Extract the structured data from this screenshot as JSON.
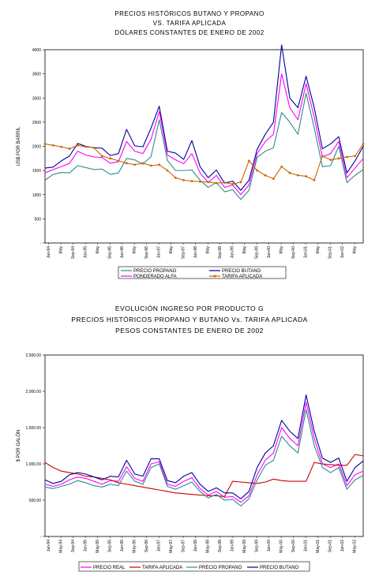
{
  "chart_data": [
    {
      "type": "line",
      "title_lines": [
        "PRECIOS HISTÓRICOS BUTANO Y PROPANO",
        "VS. TARIFA APLICADA",
        "DÓLARES CONSTANTES DE ENERO DE 2002"
      ],
      "ylabel": "US$ POR BARRIL",
      "ylim": [
        0,
        4000
      ],
      "ytick_labels": [
        "-",
        "500",
        "1000",
        "1500",
        "2000",
        "2500",
        "3000",
        "3500",
        "4000"
      ],
      "ytick_values": [
        0,
        500,
        1000,
        1500,
        2000,
        2500,
        3000,
        3500,
        4000
      ],
      "x_labels": [
        "Jan-94",
        "May",
        "Sep-94",
        "Jan-95",
        "May",
        "Sep-95",
        "Jan-96",
        "May",
        "Sep-96",
        "Jan-97",
        "May",
        "Sep-97",
        "Jan-98",
        "May",
        "Sep-98",
        "Jan-99",
        "May",
        "Sep-99",
        "Jan-00",
        "May",
        "Sep-00",
        "Jan-01",
        "May",
        "Sep-01",
        "Jan-02",
        "May"
      ],
      "legend": "bottom",
      "series": [
        {
          "name": "PRECIO PROPANO",
          "color": "#2e8b8b",
          "values": [
            1300,
            1420,
            1460,
            1450,
            1600,
            1560,
            1520,
            1530,
            1420,
            1450,
            1750,
            1720,
            1630,
            1790,
            2550,
            1710,
            1500,
            1500,
            1510,
            1300,
            1150,
            1250,
            1060,
            1100,
            900,
            1090,
            1770,
            1900,
            1970,
            2700,
            2500,
            2250,
            3100,
            2380,
            1580,
            1600,
            2000,
            1250,
            1400,
            1520
          ]
        },
        {
          "name": "PRECIO BUTANO",
          "color": "#000099",
          "values": [
            1550,
            1570,
            1700,
            1800,
            2060,
            2000,
            1970,
            1960,
            1810,
            1850,
            2350,
            2010,
            1990,
            2380,
            2830,
            1900,
            1860,
            1730,
            2120,
            1580,
            1350,
            1510,
            1240,
            1280,
            1090,
            1300,
            1940,
            2250,
            2500,
            4100,
            3000,
            2800,
            3450,
            2800,
            1950,
            2050,
            2200,
            1450,
            1700,
            2000
          ]
        },
        {
          "name": "PONDERADO ALFA",
          "color": "#ff00ff",
          "values": [
            1450,
            1520,
            1580,
            1650,
            1900,
            1820,
            1780,
            1770,
            1650,
            1680,
            2100,
            1900,
            1850,
            2150,
            2720,
            1820,
            1720,
            1640,
            1850,
            1450,
            1250,
            1400,
            1150,
            1200,
            1000,
            1200,
            1850,
            2100,
            2250,
            3500,
            2800,
            2550,
            3300,
            2600,
            1780,
            1850,
            2100,
            1350,
            1550,
            1750
          ]
        },
        {
          "name": "TARIFA APLICADA",
          "color": "#cc6600",
          "values": [
            2050,
            2020,
            1990,
            1950,
            2020,
            1990,
            1970,
            1800,
            1750,
            1700,
            1650,
            1620,
            1650,
            1600,
            1620,
            1500,
            1350,
            1300,
            1280,
            1270,
            1260,
            1240,
            1250,
            1220,
            1260,
            1700,
            1500,
            1400,
            1330,
            1580,
            1450,
            1400,
            1380,
            1300,
            1800,
            1720,
            1750,
            1780,
            1800,
            2050
          ]
        }
      ]
    },
    {
      "type": "line",
      "title_lines": [
        "EVOLUCIÓN INGRESO POR PRODUCTO G",
        "PRECIOS HISTÓRICOS PROPANO Y BUTANO Vs. TARIFA APLICADA",
        "PESOS CONSTANTES DE ENERO DE 2002"
      ],
      "ylabel": "$ POR GALÓN",
      "ylim": [
        0,
        2500
      ],
      "ytick_labels": [
        "-",
        "500.00",
        "1,000.00",
        "1,500.00",
        "2,000.00",
        "2,500.00"
      ],
      "ytick_values": [
        0,
        500,
        1000,
        1500,
        2000,
        2500
      ],
      "x_labels": [
        "Jan-94",
        "May-94",
        "Sep-94",
        "Jan-95",
        "May-95",
        "Sep-95",
        "Jan-96",
        "May-96",
        "Sep-96",
        "Jan-97",
        "May-97",
        "Sep-97",
        "Jan-98",
        "May-98",
        "Sep-98",
        "Jan-99",
        "May-99",
        "Sep-99",
        "Jan-00",
        "May-00",
        "Sep-00",
        "Jan-01",
        "May-01",
        "Sep-01",
        "Jan-02",
        "May-02"
      ],
      "legend": "bottom",
      "series": [
        {
          "name": "PRECIO REAL",
          "color": "#ff00ff",
          "values": [
            720,
            690,
            720,
            780,
            820,
            800,
            760,
            720,
            770,
            760,
            960,
            800,
            760,
            1000,
            1030,
            720,
            690,
            760,
            810,
            660,
            570,
            620,
            540,
            550,
            470,
            560,
            850,
            1050,
            1150,
            1500,
            1350,
            1250,
            1850,
            1350,
            1000,
            950,
            1000,
            700,
            850,
            900
          ]
        },
        {
          "name": "TARIFA APLICADA",
          "color": "#cc0000",
          "values": [
            1020,
            950,
            900,
            880,
            860,
            830,
            820,
            800,
            780,
            740,
            720,
            700,
            680,
            660,
            640,
            620,
            600,
            590,
            580,
            570,
            560,
            560,
            550,
            760,
            750,
            740,
            730,
            750,
            790,
            770,
            760,
            760,
            760,
            1020,
            1000,
            990,
            980,
            980,
            1130,
            1110
          ]
        },
        {
          "name": "PRECIO PROPANO",
          "color": "#2e8b8b",
          "values": [
            680,
            660,
            690,
            720,
            770,
            740,
            700,
            680,
            720,
            700,
            900,
            760,
            720,
            950,
            1000,
            690,
            650,
            700,
            750,
            620,
            530,
            580,
            500,
            510,
            420,
            520,
            780,
            980,
            1050,
            1380,
            1250,
            1150,
            1750,
            1250,
            950,
            880,
            950,
            650,
            780,
            840
          ]
        },
        {
          "name": "PRECIO BUTANO",
          "color": "#000099",
          "values": [
            780,
            730,
            760,
            850,
            880,
            860,
            820,
            780,
            830,
            820,
            1050,
            860,
            830,
            1070,
            1070,
            770,
            740,
            830,
            880,
            720,
            620,
            670,
            600,
            600,
            520,
            620,
            950,
            1150,
            1250,
            1600,
            1450,
            1350,
            1950,
            1450,
            1080,
            1020,
            1080,
            760,
            950,
            1040
          ]
        }
      ]
    }
  ]
}
